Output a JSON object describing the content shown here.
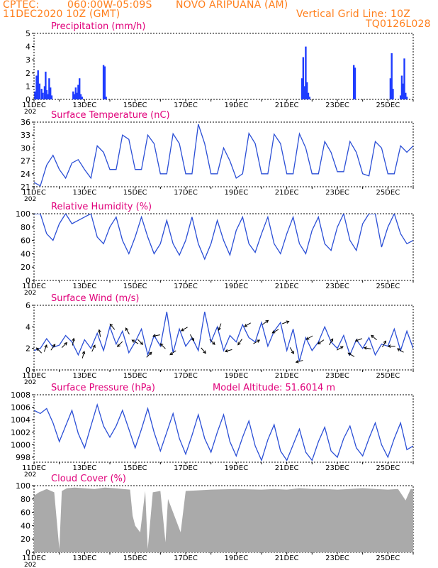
{
  "header": {
    "line1_left": "CPTEC:",
    "line1_coords": "060:00W-05:09S",
    "line1_station": "NOVO ARIPUANA (AM)",
    "line2_left": "11DEC2020 10Z (GMT)",
    "line2_right": "Vertical Grid Line: 10Z",
    "line3_right": "TQ0126L028"
  },
  "colors": {
    "header_text": "#ff7f1c",
    "panel_title": "#e0007a",
    "series_line": "#2b4fd6",
    "bar_fill": "#1f3cff",
    "cloud_fill": "#aaaaaa",
    "arrow": "#000000"
  },
  "x_axis": {
    "tick_labels": [
      "11DEC",
      "13DEC",
      "15DEC",
      "17DEC",
      "19DEC",
      "21DEC",
      "23DEC",
      "25DEC"
    ],
    "clipped_label": "202",
    "range_days": [
      0,
      15
    ]
  },
  "chart_data": [
    {
      "type": "bar",
      "title": "Precipitation (mm/h)",
      "ylim": [
        0,
        5
      ],
      "yticks": [
        "0",
        "1",
        "2",
        "3",
        "4",
        "5"
      ],
      "x_units": "days since 11DEC2020 10Z",
      "x": [
        0.04,
        0.1,
        0.16,
        0.22,
        0.3,
        0.35,
        0.42,
        0.46,
        0.5,
        0.55,
        0.6,
        0.65,
        0.7,
        1.55,
        1.6,
        1.65,
        1.7,
        1.75,
        1.8,
        1.85,
        1.9,
        2.75,
        2.8,
        2.85,
        10.6,
        10.65,
        10.7,
        10.75,
        10.8,
        10.85,
        10.9,
        12.65,
        12.7,
        14.1,
        14.15,
        14.2,
        14.5,
        14.55,
        14.6,
        14.65,
        14.7,
        14.75
      ],
      "values": [
        0.6,
        1.8,
        2.2,
        1.2,
        0.8,
        0.5,
        1.0,
        2.1,
        0.7,
        0.4,
        1.6,
        0.9,
        0.3,
        0.6,
        0.4,
        0.9,
        0.5,
        1.1,
        1.6,
        0.4,
        0.2,
        2.6,
        2.5,
        0.2,
        1.6,
        3.2,
        1.0,
        4.0,
        1.3,
        0.5,
        0.2,
        2.6,
        2.4,
        1.6,
        3.5,
        0.8,
        0.3,
        1.8,
        1.2,
        3.1,
        0.5,
        0.2
      ]
    },
    {
      "type": "line",
      "title": "Surface Temperature (nC)",
      "ylim": [
        21,
        36
      ],
      "yticks": [
        "21",
        "24",
        "27",
        "30",
        "33",
        "36"
      ],
      "x_units": "days since 11DEC2020 10Z",
      "x": [
        0,
        0.25,
        0.5,
        0.75,
        1,
        1.25,
        1.5,
        1.75,
        2,
        2.25,
        2.5,
        2.75,
        3,
        3.25,
        3.5,
        3.75,
        4,
        4.25,
        4.5,
        4.75,
        5,
        5.25,
        5.5,
        5.75,
        6,
        6.25,
        6.5,
        6.75,
        7,
        7.25,
        7.5,
        7.75,
        8,
        8.25,
        8.5,
        8.75,
        9,
        9.25,
        9.5,
        9.75,
        10,
        10.25,
        10.5,
        10.75,
        11,
        11.25,
        11.5,
        11.75,
        12,
        12.25,
        12.5,
        12.75,
        13,
        13.25,
        13.5,
        13.75,
        14,
        14.25,
        14.5,
        14.75,
        15
      ],
      "values": [
        22,
        21.2,
        26,
        28.3,
        25,
        23,
        26.5,
        27.3,
        25,
        23,
        30.5,
        29,
        25,
        25,
        33,
        32,
        25,
        25,
        33,
        31,
        24,
        24,
        33.3,
        31,
        24,
        24,
        35.5,
        31,
        24,
        24,
        30,
        27,
        23,
        24,
        33.4,
        31,
        24,
        24,
        33.2,
        31,
        24,
        24,
        33.3,
        30,
        24,
        24,
        31.5,
        29,
        24.5,
        24.5,
        31.5,
        29,
        24,
        23.5,
        31.5,
        30,
        24,
        24,
        30.5,
        29,
        30.5
      ]
    },
    {
      "type": "line",
      "title": "Relative Humidity (%)",
      "ylim": [
        0,
        100
      ],
      "yticks": [
        "0",
        "20",
        "40",
        "60",
        "80",
        "100"
      ],
      "x_units": "days since 11DEC2020 10Z",
      "x": [
        0,
        0.25,
        0.5,
        0.75,
        1,
        1.25,
        1.5,
        1.75,
        2,
        2.25,
        2.5,
        2.75,
        3,
        3.25,
        3.5,
        3.75,
        4,
        4.25,
        4.5,
        4.75,
        5,
        5.25,
        5.5,
        5.75,
        6,
        6.25,
        6.5,
        6.75,
        7,
        7.25,
        7.5,
        7.75,
        8,
        8.25,
        8.5,
        8.75,
        9,
        9.25,
        9.5,
        9.75,
        10,
        10.25,
        10.5,
        10.75,
        11,
        11.25,
        11.5,
        11.75,
        12,
        12.25,
        12.5,
        12.75,
        13,
        13.25,
        13.5,
        13.75,
        14,
        14.25,
        14.5,
        14.75,
        15
      ],
      "values": [
        100,
        100,
        70,
        60,
        85,
        100,
        85,
        90,
        95,
        100,
        65,
        55,
        80,
        95,
        60,
        40,
        65,
        95,
        65,
        40,
        55,
        90,
        55,
        38,
        60,
        95,
        55,
        32,
        55,
        90,
        60,
        38,
        75,
        95,
        55,
        42,
        70,
        95,
        55,
        40,
        70,
        95,
        55,
        40,
        75,
        95,
        55,
        45,
        80,
        100,
        60,
        45,
        85,
        100,
        100,
        50,
        80,
        100,
        70,
        55,
        60
      ]
    },
    {
      "type": "line",
      "title": "Surface Wind (m/s)",
      "ylim": [
        0,
        6
      ],
      "yticks": [
        "0",
        "2",
        "4",
        "6"
      ],
      "x_units": "days since 11DEC2020 10Z",
      "x": [
        0,
        0.25,
        0.5,
        0.75,
        1,
        1.25,
        1.5,
        1.75,
        2,
        2.25,
        2.5,
        2.75,
        3,
        3.25,
        3.5,
        3.75,
        4,
        4.25,
        4.5,
        4.75,
        5,
        5.25,
        5.5,
        5.75,
        6,
        6.25,
        6.5,
        6.75,
        7,
        7.25,
        7.5,
        7.75,
        8,
        8.25,
        8.5,
        8.75,
        9,
        9.25,
        9.5,
        9.75,
        10,
        10.25,
        10.5,
        10.75,
        11,
        11.25,
        11.5,
        11.75,
        12,
        12.25,
        12.5,
        12.75,
        13,
        13.25,
        13.5,
        13.75,
        14,
        14.25,
        14.5,
        14.75,
        15
      ],
      "values": [
        1.8,
        2,
        2.9,
        2.1,
        2.3,
        3.2,
        2.6,
        1.4,
        2.8,
        2,
        3.4,
        1.8,
        4,
        2.4,
        3.6,
        1.6,
        2.6,
        3.8,
        1.4,
        3.2,
        2.2,
        5.4,
        1.6,
        3.8,
        2.2,
        3,
        1.8,
        5.4,
        2.6,
        4,
        1.8,
        3.2,
        2.6,
        4.2,
        3,
        2.6,
        4.4,
        2.2,
        3.6,
        4.4,
        1.8,
        3.8,
        0.8,
        3,
        1.8,
        2.6,
        4,
        2.6,
        2,
        3.2,
        1.4,
        2.8,
        2,
        3,
        1.4,
        2.4,
        2.2,
        3.8,
        1.8,
        3.6,
        2
      ]
    },
    {
      "type": "line",
      "title": "Surface Pressure (hPa)",
      "annotation": "Model Altitude: 51.6014 m",
      "ylim": [
        997.2,
        1008
      ],
      "yticks": [
        "998",
        "1000",
        "1002",
        "1004",
        "1006",
        "1008"
      ],
      "x_units": "days since 11DEC2020 10Z",
      "x": [
        0,
        0.25,
        0.5,
        0.75,
        1,
        1.25,
        1.5,
        1.75,
        2,
        2.25,
        2.5,
        2.75,
        3,
        3.25,
        3.5,
        3.75,
        4,
        4.25,
        4.5,
        4.75,
        5,
        5.25,
        5.5,
        5.75,
        6,
        6.25,
        6.5,
        6.75,
        7,
        7.25,
        7.5,
        7.75,
        8,
        8.25,
        8.5,
        8.75,
        9,
        9.25,
        9.5,
        9.75,
        10,
        10.25,
        10.5,
        10.75,
        11,
        11.25,
        11.5,
        11.75,
        12,
        12.25,
        12.5,
        12.75,
        13,
        13.25,
        13.5,
        13.75,
        14,
        14.25,
        14.5,
        14.75,
        15
      ],
      "values": [
        1005.5,
        1005,
        1005.8,
        1003.5,
        1000.5,
        1003,
        1005.5,
        1001.8,
        999.5,
        1003,
        1006.4,
        1003,
        1001.2,
        1003,
        1005.5,
        1002.5,
        999.5,
        1002.5,
        1005.8,
        1002,
        999,
        1002,
        1005,
        1001,
        998.5,
        1001.5,
        1004.8,
        1001,
        998.8,
        1002,
        1004.8,
        1000.5,
        998.2,
        1001.2,
        1003.8,
        999.8,
        997.5,
        1000.8,
        1003.2,
        999,
        997.5,
        1000,
        1002.5,
        998.8,
        997.5,
        1000.5,
        1002.8,
        999,
        998,
        1001,
        1003,
        999.5,
        998.2,
        1001,
        1003.5,
        1000,
        998,
        1001,
        1003.5,
        999.2,
        999.8
      ]
    },
    {
      "type": "area",
      "title": "Cloud Cover (%)",
      "ylim": [
        0,
        100
      ],
      "yticks": [
        "0",
        "20",
        "40",
        "60",
        "80",
        "100"
      ],
      "x_units": "days since 11DEC2020 10Z",
      "x": [
        0,
        0.2,
        0.5,
        0.8,
        1.0,
        1.1,
        1.3,
        1.6,
        2.0,
        2.4,
        2.8,
        3.2,
        3.8,
        3.9,
        4.0,
        4.2,
        4.4,
        4.5,
        4.7,
        5.0,
        5.2,
        5.3,
        5.5,
        5.8,
        6.0,
        6.5,
        7.0,
        8.0,
        9.0,
        9.5,
        10.0,
        10.5,
        11.0,
        11.5,
        12.0,
        12.5,
        13.0,
        13.5,
        14.0,
        14.4,
        14.7,
        14.9,
        15.0
      ],
      "values": [
        85,
        90,
        95,
        90,
        5,
        92,
        96,
        97,
        96,
        95,
        97,
        96,
        94,
        55,
        40,
        30,
        92,
        5,
        90,
        92,
        15,
        80,
        60,
        30,
        92,
        93,
        94,
        95,
        94,
        95,
        94,
        96,
        95,
        95,
        94,
        95,
        96,
        95,
        94,
        95,
        78,
        95,
        95
      ]
    }
  ],
  "wind_arrows": {
    "x_units": "days since 11DEC2020 10Z",
    "note_units": "direction degrees clockwise from north the arrow points toward",
    "x": [
      0.2,
      0.45,
      0.75,
      1.2,
      1.55,
      1.95,
      2.35,
      2.6,
      3.1,
      3.4,
      3.7,
      4.0,
      4.2,
      4.55,
      4.85,
      5.1,
      5.5,
      5.95,
      6.25,
      6.7,
      7.05,
      7.35,
      7.7,
      8.15,
      8.45,
      8.8,
      9.15,
      9.55,
      9.95,
      10.2,
      10.5,
      10.9,
      11.35,
      11.75,
      12.1,
      12.55,
      12.85,
      13.2,
      13.45,
      13.85,
      14.15,
      14.5
    ],
    "directions": [
      315,
      20,
      35,
      45,
      10,
      15,
      25,
      350,
      320,
      225,
      330,
      300,
      135,
      45,
      260,
      315,
      235,
      240,
      150,
      140,
      135,
      200,
      255,
      215,
      240,
      60,
      55,
      240,
      70,
      150,
      255,
      240,
      235,
      30,
      60,
      300,
      250,
      280,
      310,
      30,
      270,
      300
    ]
  }
}
